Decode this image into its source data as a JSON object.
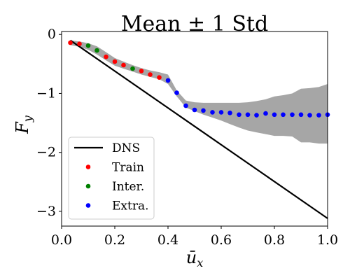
{
  "chart_data": {
    "type": "scatter",
    "title": "Mean ± 1 Std",
    "xlabel": "ū",
    "xlabel_sub": "x",
    "ylabel": "F",
    "ylabel_sub": "y",
    "xlim": [
      0.0,
      1.0
    ],
    "ylim": [
      -3.25,
      0.05
    ],
    "xticks": [
      {
        "value": 0.0,
        "label": "0.0"
      },
      {
        "value": 0.2,
        "label": "0.2"
      },
      {
        "value": 0.4,
        "label": "0.4"
      },
      {
        "value": 0.6,
        "label": "0.6"
      },
      {
        "value": 0.8,
        "label": "0.8"
      },
      {
        "value": 1.0,
        "label": "1.0"
      }
    ],
    "yticks": [
      {
        "value": 0,
        "label": "0"
      },
      {
        "value": -1,
        "label": "−1"
      },
      {
        "value": -2,
        "label": "−2"
      },
      {
        "value": -3,
        "label": "−3"
      }
    ],
    "grid": false,
    "legend_position": "lower-left",
    "band": {
      "color": "#a6a6a6",
      "x": [
        0.033,
        0.067,
        0.1,
        0.133,
        0.167,
        0.2,
        0.233,
        0.267,
        0.3,
        0.333,
        0.367,
        0.4,
        0.433,
        0.467,
        0.5,
        0.533,
        0.567,
        0.6,
        0.633,
        0.667,
        0.7,
        0.733,
        0.767,
        0.8,
        0.833,
        0.867,
        0.9,
        0.933,
        0.967,
        1.0
      ],
      "upper": [
        -0.1,
        -0.12,
        -0.15,
        -0.2,
        -0.3,
        -0.4,
        -0.46,
        -0.52,
        -0.57,
        -0.61,
        -0.64,
        -0.68,
        -0.95,
        -1.12,
        -1.15,
        -1.16,
        -1.16,
        -1.16,
        -1.16,
        -1.16,
        -1.15,
        -1.13,
        -1.1,
        -1.05,
        -1.03,
        -1.0,
        -0.92,
        -0.91,
        -0.89,
        -0.84
      ],
      "lower": [
        -0.18,
        -0.21,
        -0.26,
        -0.34,
        -0.44,
        -0.53,
        -0.58,
        -0.63,
        -0.68,
        -0.72,
        -0.76,
        -0.84,
        -1.05,
        -1.24,
        -1.3,
        -1.36,
        -1.41,
        -1.46,
        -1.52,
        -1.58,
        -1.63,
        -1.66,
        -1.69,
        -1.72,
        -1.72,
        -1.73,
        -1.83,
        -1.83,
        -1.85,
        -1.85
      ]
    },
    "series": [
      {
        "name": "DNS",
        "kind": "line",
        "color": "#000000",
        "x": [
          0.033,
          1.0
        ],
        "y": [
          -0.1,
          -3.12
        ]
      },
      {
        "name": "Train",
        "kind": "scatter",
        "color": "#ff0000",
        "x": [
          0.033,
          0.067,
          0.167,
          0.2,
          0.233,
          0.3,
          0.333,
          0.367
        ],
        "y": [
          -0.14,
          -0.16,
          -0.38,
          -0.46,
          -0.52,
          -0.62,
          -0.68,
          -0.73
        ]
      },
      {
        "name": "Inter.",
        "kind": "scatter",
        "color": "#008000",
        "x": [
          0.1,
          0.133,
          0.267
        ],
        "y": [
          -0.19,
          -0.27,
          -0.58
        ]
      },
      {
        "name": "Extra.",
        "kind": "scatter",
        "color": "#0000ff",
        "x": [
          0.4,
          0.433,
          0.467,
          0.5,
          0.533,
          0.567,
          0.6,
          0.633,
          0.667,
          0.7,
          0.733,
          0.767,
          0.8,
          0.833,
          0.867,
          0.9,
          0.933,
          0.967,
          1.0
        ],
        "y": [
          -0.78,
          -0.99,
          -1.21,
          -1.28,
          -1.29,
          -1.32,
          -1.32,
          -1.33,
          -1.36,
          -1.36,
          -1.37,
          -1.34,
          -1.36,
          -1.36,
          -1.36,
          -1.36,
          -1.37,
          -1.37,
          -1.36
        ]
      }
    ]
  }
}
